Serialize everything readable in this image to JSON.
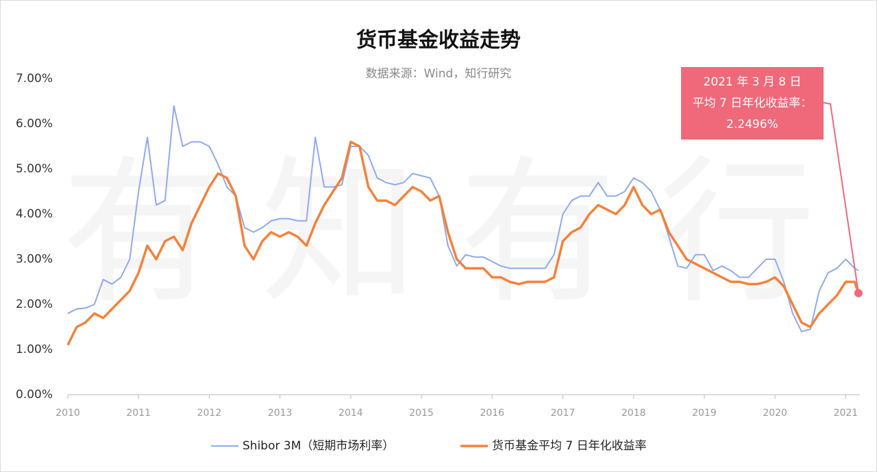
{
  "chart_data": {
    "type": "line",
    "title": "货币基金收益走势",
    "subtitle": "数据来源：Wind，知行研究",
    "watermark": "有知有行",
    "x": [
      2010,
      2010.125,
      2010.25,
      2010.375,
      2010.5,
      2010.625,
      2010.75,
      2010.875,
      2011,
      2011.125,
      2011.25,
      2011.375,
      2011.5,
      2011.625,
      2011.75,
      2011.875,
      2012,
      2012.125,
      2012.25,
      2012.375,
      2012.5,
      2012.625,
      2012.75,
      2012.875,
      2013,
      2013.125,
      2013.25,
      2013.375,
      2013.5,
      2013.625,
      2013.75,
      2013.875,
      2014,
      2014.125,
      2014.25,
      2014.375,
      2014.5,
      2014.625,
      2014.75,
      2014.875,
      2015,
      2015.125,
      2015.25,
      2015.375,
      2015.5,
      2015.625,
      2015.75,
      2015.875,
      2016,
      2016.125,
      2016.25,
      2016.375,
      2016.5,
      2016.625,
      2016.75,
      2016.875,
      2017,
      2017.125,
      2017.25,
      2017.375,
      2017.5,
      2017.625,
      2017.75,
      2017.875,
      2018,
      2018.125,
      2018.25,
      2018.375,
      2018.5,
      2018.625,
      2018.75,
      2018.875,
      2019,
      2019.125,
      2019.25,
      2019.375,
      2019.5,
      2019.625,
      2019.75,
      2019.875,
      2020,
      2020.125,
      2020.25,
      2020.375,
      2020.5,
      2020.625,
      2020.75,
      2020.875,
      2021,
      2021.125,
      2021.18
    ],
    "series": [
      {
        "name": "Shibor 3M（短期市场利率）",
        "color": "#8fa9f0",
        "width": 2,
        "values": [
          1.8,
          1.9,
          1.92,
          2.0,
          2.55,
          2.45,
          2.6,
          3.0,
          4.5,
          5.7,
          4.2,
          4.3,
          6.4,
          5.5,
          5.6,
          5.6,
          5.5,
          5.1,
          4.6,
          4.4,
          3.7,
          3.6,
          3.7,
          3.85,
          3.9,
          3.9,
          3.85,
          3.85,
          5.7,
          4.6,
          4.6,
          4.65,
          5.5,
          5.5,
          5.3,
          4.8,
          4.7,
          4.65,
          4.7,
          4.9,
          4.85,
          4.8,
          4.4,
          3.3,
          2.85,
          3.1,
          3.05,
          3.05,
          2.95,
          2.85,
          2.8,
          2.8,
          2.8,
          2.8,
          2.8,
          3.1,
          4.0,
          4.3,
          4.4,
          4.4,
          4.7,
          4.4,
          4.4,
          4.5,
          4.8,
          4.7,
          4.5,
          4.1,
          3.5,
          2.85,
          2.8,
          3.1,
          3.1,
          2.75,
          2.85,
          2.75,
          2.6,
          2.6,
          2.8,
          3.0,
          3.0,
          2.5,
          1.8,
          1.4,
          1.45,
          2.3,
          2.7,
          2.8,
          3.0,
          2.8,
          2.75
        ]
      },
      {
        "name": "货币基金平均 7 日年化收益率",
        "color": "#f5813a",
        "width": 3.5,
        "values": [
          1.1,
          1.5,
          1.6,
          1.8,
          1.7,
          1.9,
          2.1,
          2.3,
          2.7,
          3.3,
          3.0,
          3.4,
          3.5,
          3.2,
          3.8,
          4.2,
          4.6,
          4.9,
          4.8,
          4.4,
          3.3,
          3.0,
          3.4,
          3.6,
          3.5,
          3.6,
          3.5,
          3.3,
          3.8,
          4.2,
          4.5,
          4.8,
          5.6,
          5.5,
          4.6,
          4.3,
          4.3,
          4.2,
          4.4,
          4.6,
          4.5,
          4.3,
          4.4,
          3.6,
          3.0,
          2.8,
          2.8,
          2.8,
          2.6,
          2.6,
          2.5,
          2.45,
          2.5,
          2.5,
          2.5,
          2.6,
          3.4,
          3.6,
          3.7,
          4.0,
          4.2,
          4.1,
          4.0,
          4.2,
          4.6,
          4.2,
          4.0,
          4.1,
          3.6,
          3.3,
          3.0,
          2.9,
          2.8,
          2.7,
          2.6,
          2.5,
          2.5,
          2.45,
          2.45,
          2.5,
          2.6,
          2.4,
          2.0,
          1.6,
          1.5,
          1.8,
          2.0,
          2.2,
          2.5,
          2.5,
          2.2496
        ]
      }
    ],
    "annotation": [
      "2021 年 3 月 8 日",
      "平均 7 日年化收益率：",
      "2.2496%"
    ],
    "annotation_color": "#f0697a",
    "xlim": [
      2010,
      2021.2
    ],
    "xticks": [
      2010,
      2011,
      2012,
      2013,
      2014,
      2015,
      2016,
      2017,
      2018,
      2019,
      2020,
      2021
    ],
    "ylim": [
      0,
      7
    ],
    "yticks": [
      {
        "value": 0,
        "label": "0.00%"
      },
      {
        "value": 1,
        "label": "1.00%"
      },
      {
        "value": 2,
        "label": "2.00%"
      },
      {
        "value": 3,
        "label": "3.00%"
      },
      {
        "value": 4,
        "label": "4.00%"
      },
      {
        "value": 5,
        "label": "5.00%"
      },
      {
        "value": 6,
        "label": "6.00%"
      },
      {
        "value": 7,
        "label": "7.00%"
      }
    ],
    "grid": false,
    "legend": "bottom"
  }
}
